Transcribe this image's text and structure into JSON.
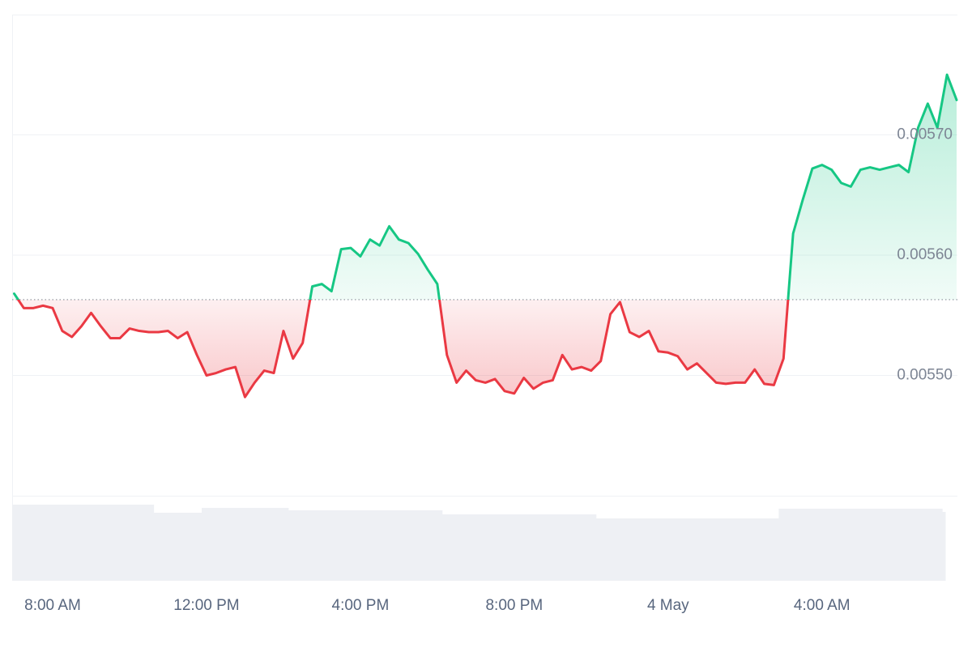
{
  "chart_data": {
    "type": "line",
    "categories": [
      null,
      null,
      null,
      null,
      "8:00 AM",
      null,
      null,
      null,
      null,
      null,
      null,
      null,
      null,
      null,
      null,
      null,
      null,
      null,
      null,
      null,
      "12:00 PM",
      null,
      null,
      null,
      null,
      null,
      null,
      null,
      null,
      null,
      null,
      null,
      null,
      null,
      null,
      null,
      "4:00 PM",
      null,
      null,
      null,
      null,
      null,
      null,
      null,
      null,
      null,
      null,
      null,
      null,
      null,
      null,
      null,
      "8:00 PM",
      null,
      null,
      null,
      null,
      null,
      null,
      null,
      null,
      null,
      null,
      null,
      null,
      null,
      null,
      null,
      "4 May",
      null,
      null,
      null,
      null,
      null,
      null,
      null,
      null,
      null,
      null,
      null,
      null,
      null,
      null,
      null,
      "4:00 AM",
      null,
      null,
      null,
      null,
      null,
      null,
      null,
      null,
      null,
      null,
      null,
      null,
      null,
      null
    ],
    "values": [
      0.005568,
      0.005556,
      0.005556,
      0.005558,
      0.005556,
      0.005537,
      0.005532,
      0.005541,
      0.005552,
      0.005541,
      0.005531,
      0.005531,
      0.005539,
      0.005537,
      0.005536,
      0.005536,
      0.005537,
      0.005531,
      0.005536,
      0.005517,
      0.0055,
      0.005502,
      0.005505,
      0.005507,
      0.005482,
      0.005494,
      0.005504,
      0.005502,
      0.005537,
      0.005514,
      0.005527,
      0.005574,
      0.005576,
      0.00557,
      0.005605,
      0.005606,
      0.005599,
      0.005613,
      0.005608,
      0.005624,
      0.005613,
      0.00561,
      0.005601,
      0.005588,
      0.005576,
      0.005517,
      0.005494,
      0.005504,
      0.005496,
      0.005494,
      0.005497,
      0.005487,
      0.005485,
      0.005498,
      0.005489,
      0.005494,
      0.005496,
      0.005517,
      0.005505,
      0.005507,
      0.005504,
      0.005512,
      0.005551,
      0.005561,
      0.005536,
      0.005532,
      0.005537,
      0.00552,
      0.005519,
      0.005516,
      0.005505,
      0.00551,
      0.005502,
      0.005494,
      0.005493,
      0.005494,
      0.005494,
      0.005505,
      0.005493,
      0.005492,
      0.005514,
      0.005618,
      0.005646,
      0.005672,
      0.005675,
      0.005671,
      0.00566,
      0.005657,
      0.005671,
      0.005673,
      0.005671,
      0.005673,
      0.005675,
      0.005669,
      0.005706,
      0.005726,
      0.005706,
      0.00575,
      0.005729
    ],
    "baseline": 0.005563,
    "up_color": "#16c784",
    "down_color": "#ea3943",
    "ylim": [
      0.0054,
      0.0058
    ],
    "yticks": [
      {
        "value": 0.0055,
        "label": "0.00550"
      },
      {
        "value": 0.0056,
        "label": "0.00560"
      },
      {
        "value": 0.0057,
        "label": "0.00570"
      }
    ],
    "grid": true,
    "volume": [
      94,
      94,
      94,
      94,
      94,
      94,
      94,
      94,
      94,
      94,
      94,
      94,
      94,
      94,
      94,
      84,
      84,
      84,
      84,
      84,
      90,
      90,
      90,
      90,
      90,
      90,
      90,
      90,
      90,
      87,
      87,
      87,
      87,
      87,
      87,
      87,
      87,
      87,
      87,
      87,
      87,
      87,
      87,
      87,
      87,
      82,
      82,
      82,
      82,
      82,
      82,
      82,
      82,
      82,
      82,
      82,
      82,
      82,
      82,
      82,
      82,
      77,
      77,
      77,
      77,
      77,
      77,
      77,
      77,
      77,
      77,
      77,
      77,
      77,
      77,
      77,
      77,
      77,
      77,
      77,
      89,
      89,
      89,
      89,
      89,
      89,
      89,
      89,
      89,
      89,
      89,
      89,
      89,
      89,
      89,
      89,
      89,
      85,
      85
    ],
    "volume_color": "#eef0f4",
    "volume_lim": [
      0,
      105
    ]
  }
}
